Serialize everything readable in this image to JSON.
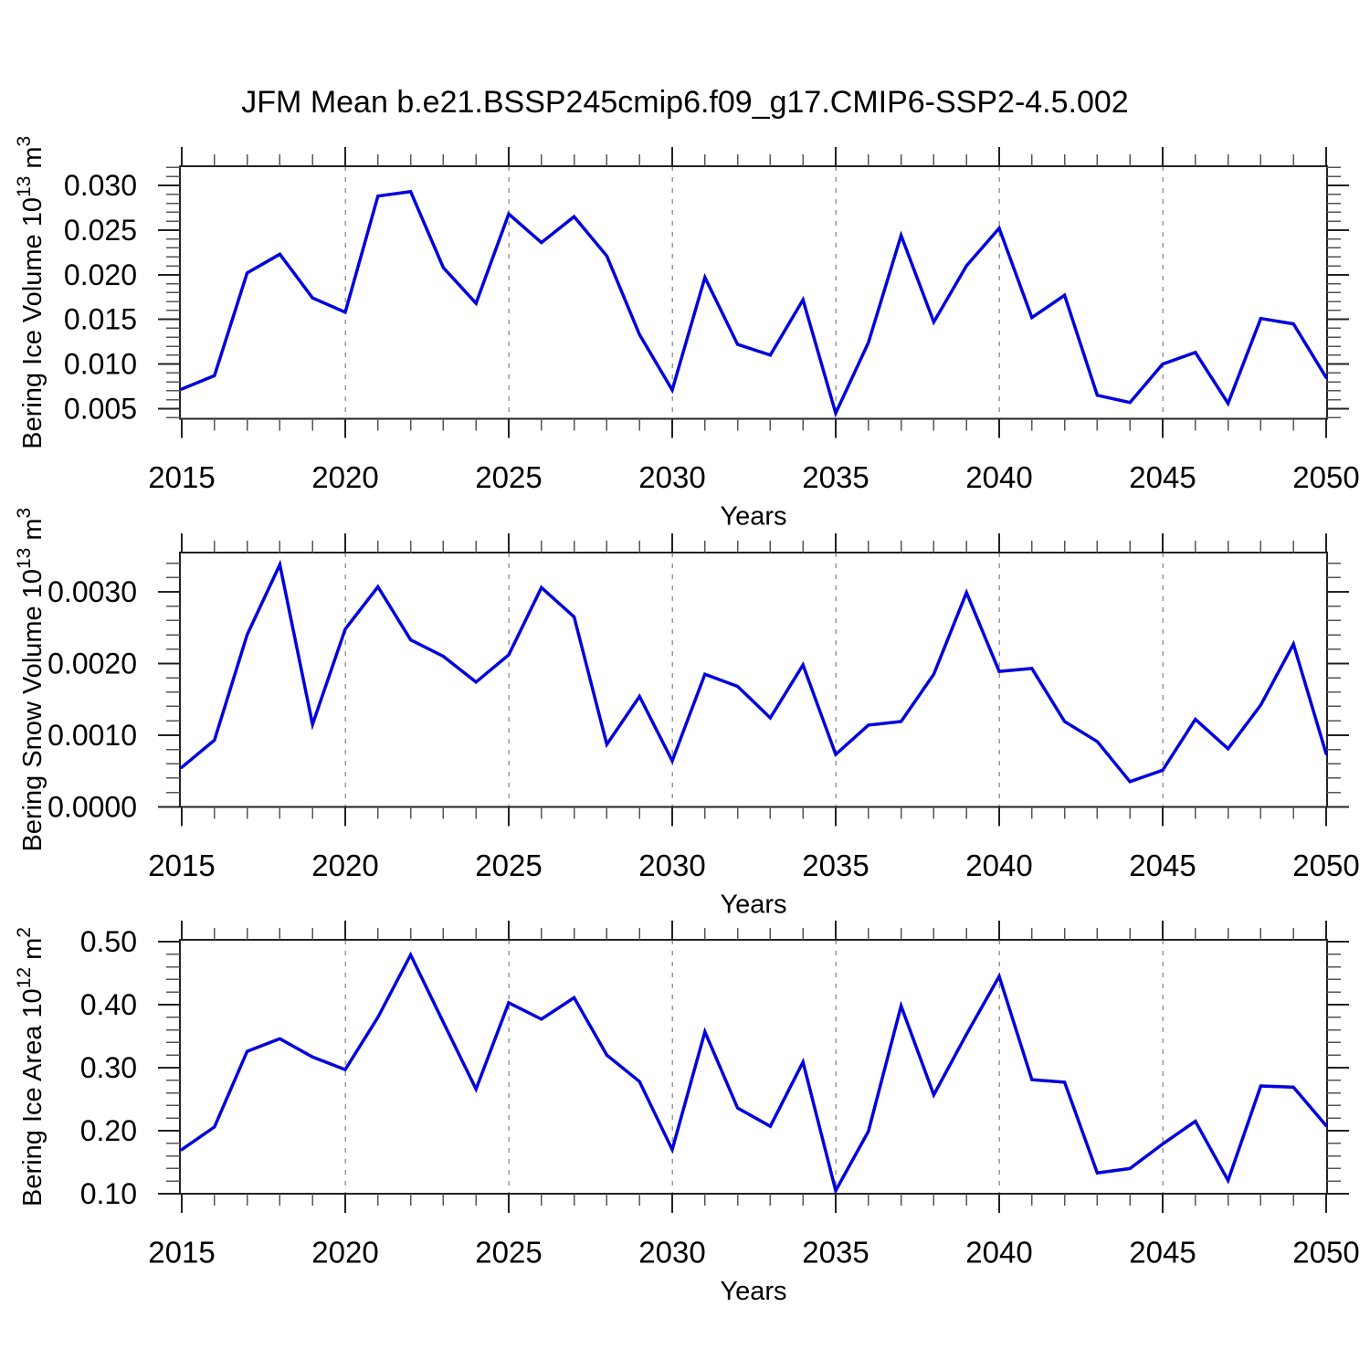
{
  "title": "JFM Mean b.e21.BSSP245cmip6.f09_g17.CMIP6-SSP2-4.5.002",
  "xlabel": "Years",
  "colors": {
    "line": "#0000dd",
    "grid": "#999999",
    "axis": "#222222",
    "minor_tick": "#555555",
    "text": "#000000",
    "background": "#ffffff"
  },
  "years": [
    2015,
    2016,
    2017,
    2018,
    2019,
    2020,
    2021,
    2022,
    2023,
    2024,
    2025,
    2026,
    2027,
    2028,
    2029,
    2030,
    2031,
    2032,
    2033,
    2034,
    2035,
    2036,
    2037,
    2038,
    2039,
    2040,
    2041,
    2042,
    2043,
    2044,
    2045,
    2046,
    2047,
    2048,
    2049,
    2050
  ],
  "chart_data": [
    {
      "type": "line",
      "name": "bering-ice-volume",
      "ylabel_text": "Bering Ice Volume 10^13 m^3",
      "ylabel_parts": [
        {
          "t": "Bering Ice Volume 10"
        },
        {
          "t": "13",
          "sup": true
        },
        {
          "t": " m"
        },
        {
          "t": "3",
          "sup": true
        }
      ],
      "xlabel": "Years",
      "xlim": [
        2015,
        2050
      ],
      "x_major_ticks": [
        2015,
        2020,
        2025,
        2030,
        2035,
        2040,
        2045,
        2050
      ],
      "x_minor_step": 1,
      "grid_years": [
        2020,
        2025,
        2030,
        2035,
        2040,
        2045
      ],
      "yticks": [
        {
          "v": 0.005,
          "label": "0.005"
        },
        {
          "v": 0.01,
          "label": "0.010"
        },
        {
          "v": 0.015,
          "label": "0.015"
        },
        {
          "v": 0.02,
          "label": "0.020"
        },
        {
          "v": 0.025,
          "label": "0.025"
        },
        {
          "v": 0.03,
          "label": "0.030"
        }
      ],
      "y_minor_step": 0.001,
      "ylim": [
        0.003875,
        0.032147
      ],
      "values": [
        0.0072,
        0.0087,
        0.0202,
        0.0223,
        0.0174,
        0.0158,
        0.0288,
        0.0293,
        0.0208,
        0.0168,
        0.0268,
        0.0236,
        0.0265,
        0.0221,
        0.0133,
        0.0071,
        0.0197,
        0.0122,
        0.011,
        0.0172,
        0.0045,
        0.0124,
        0.0244,
        0.0147,
        0.021,
        0.0252,
        0.0152,
        0.0177,
        0.0065,
        0.0057,
        0.01,
        0.0113,
        0.0056,
        0.0151,
        0.0145,
        0.0085
      ]
    },
    {
      "type": "line",
      "name": "bering-snow-volume",
      "ylabel_text": "Bering Snow Volume 10^13 m^3",
      "ylabel_parts": [
        {
          "t": "Bering Snow Volume 10"
        },
        {
          "t": "13",
          "sup": true
        },
        {
          "t": " m"
        },
        {
          "t": "3",
          "sup": true
        }
      ],
      "xlabel": "Years",
      "xlim": [
        2015,
        2050
      ],
      "x_major_ticks": [
        2015,
        2020,
        2025,
        2030,
        2035,
        2040,
        2045,
        2050
      ],
      "x_minor_step": 1,
      "grid_years": [
        2020,
        2025,
        2030,
        2035,
        2040,
        2045
      ],
      "yticks": [
        {
          "v": 0.0,
          "label": "0.0000"
        },
        {
          "v": 0.001,
          "label": "0.0010"
        },
        {
          "v": 0.002,
          "label": "0.0020"
        },
        {
          "v": 0.003,
          "label": "0.0030"
        }
      ],
      "y_minor_step": 0.0002,
      "ylim": [
        0.0,
        0.003548
      ],
      "values": [
        0.00055,
        0.00093,
        0.0024,
        0.00338,
        0.00115,
        0.00248,
        0.00307,
        0.00233,
        0.0021,
        0.00174,
        0.00212,
        0.00306,
        0.00265,
        0.00087,
        0.00154,
        0.00064,
        0.00185,
        0.00168,
        0.00124,
        0.00198,
        0.00073,
        0.00114,
        0.00119,
        0.00185,
        0.00299,
        0.00189,
        0.00193,
        0.00119,
        0.00091,
        0.00035,
        0.00051,
        0.00122,
        0.00081,
        0.00142,
        0.00227,
        0.00074
      ]
    },
    {
      "type": "line",
      "name": "bering-ice-area",
      "ylabel_text": "Bering Ice Area 10^12 m^2",
      "ylabel_parts": [
        {
          "t": "Bering Ice Area 10"
        },
        {
          "t": "12",
          "sup": true
        },
        {
          "t": " m"
        },
        {
          "t": "2",
          "sup": true
        }
      ],
      "xlabel": "Years",
      "xlim": [
        2015,
        2050
      ],
      "x_major_ticks": [
        2015,
        2020,
        2025,
        2030,
        2035,
        2040,
        2045,
        2050
      ],
      "x_minor_step": 1,
      "grid_years": [
        2020,
        2025,
        2030,
        2035,
        2040,
        2045
      ],
      "yticks": [
        {
          "v": 0.1,
          "label": "0.10"
        },
        {
          "v": 0.2,
          "label": "0.20"
        },
        {
          "v": 0.3,
          "label": "0.30"
        },
        {
          "v": 0.4,
          "label": "0.40"
        },
        {
          "v": 0.5,
          "label": "0.50"
        }
      ],
      "y_minor_step": 0.02,
      "ylim": [
        0.1,
        0.5029
      ],
      "values": [
        0.17,
        0.206,
        0.326,
        0.346,
        0.317,
        0.297,
        0.38,
        0.479,
        0.372,
        0.266,
        0.403,
        0.377,
        0.411,
        0.32,
        0.278,
        0.17,
        0.357,
        0.236,
        0.207,
        0.309,
        0.105,
        0.199,
        0.398,
        0.257,
        0.353,
        0.445,
        0.281,
        0.277,
        0.133,
        0.14,
        0.179,
        0.215,
        0.121,
        0.271,
        0.269,
        0.208
      ]
    }
  ]
}
